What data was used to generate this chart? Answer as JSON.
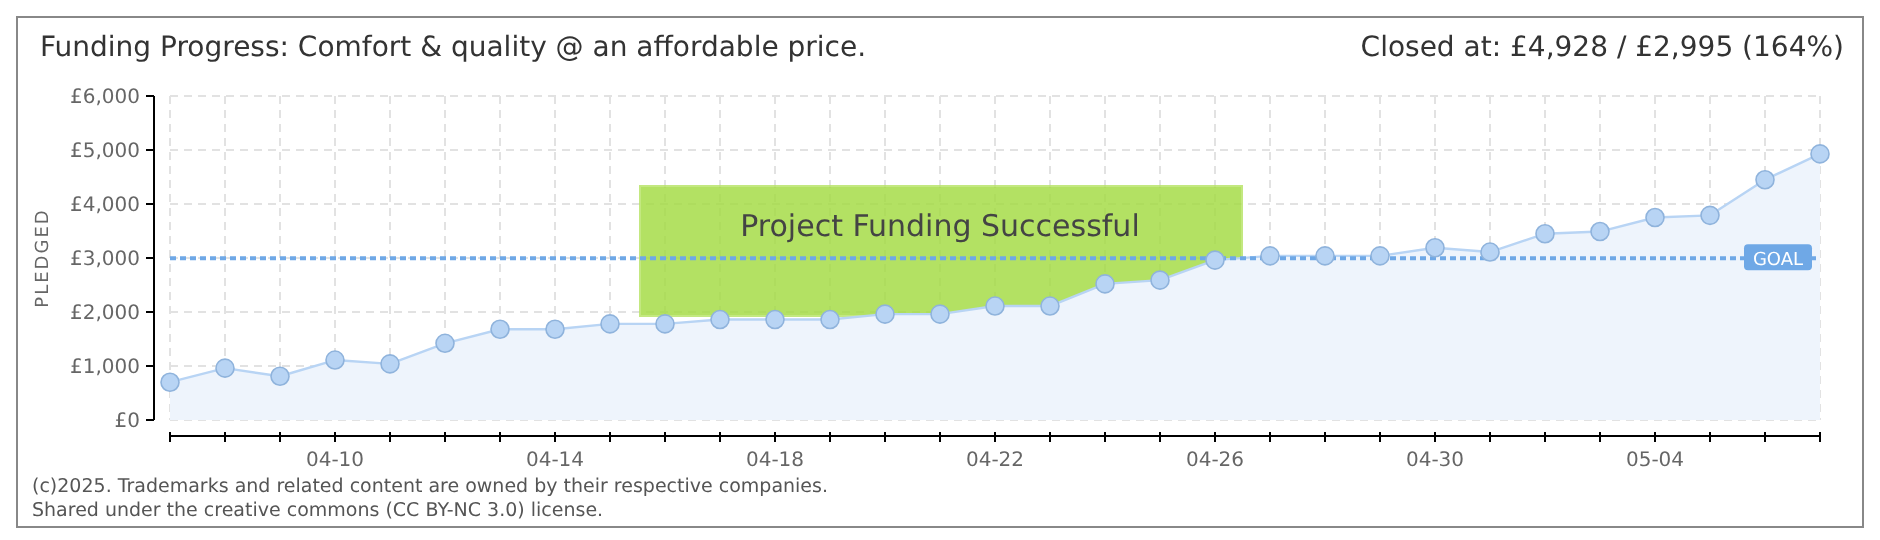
{
  "chart_data": {
    "type": "area",
    "title": "Funding Progress: Comfort & quality @ an affordable price.",
    "ylabel": "PLEDGED",
    "annotations": [
      "Closed at:  £4,928 / £2,995 (164%)",
      "Project Funding Successful",
      "(c)2025. Trademarks and related content are owned by their respective companies.",
      "Shared under the creative commons (CC BY-NC 3.0) license."
    ],
    "x": [
      "--04-07",
      "--04-08",
      "--04-09",
      "--04-10",
      "--04-11",
      "--04-12",
      "--04-13",
      "--04-14",
      "--04-15",
      "--04-16",
      "--04-17",
      "--04-18",
      "--04-19",
      "--04-20",
      "--04-21",
      "--04-22",
      "--04-23",
      "--04-24",
      "--04-25",
      "--04-26",
      "--04-27",
      "--04-28",
      "--04-29",
      "--04-30",
      "--05-01",
      "--05-02",
      "--05-03",
      "--05-04",
      "--05-05",
      "--05-06",
      "--05-07"
    ],
    "values": [
      700,
      960,
      810,
      1110,
      1040,
      1420,
      1680,
      1680,
      1780,
      1780,
      1860,
      1860,
      1860,
      1960,
      1960,
      2110,
      2110,
      2520,
      2590,
      2960,
      3040,
      3040,
      3040,
      3190,
      3110,
      3450,
      3490,
      3750,
      3790,
      4450,
      4928
    ],
    "color": "#b8d4f4",
    "marker": "circle",
    "grid": true,
    "xlim": [
      "--04-07",
      "--05-07"
    ],
    "xticks": [
      {
        "value": "--04-07",
        "label": null
      },
      {
        "value": "--04-08",
        "label": null
      },
      {
        "value": "--04-09",
        "label": null
      },
      {
        "value": "--04-10",
        "label": "04-10"
      },
      {
        "value": "--04-11",
        "label": null
      },
      {
        "value": "--04-12",
        "label": null
      },
      {
        "value": "--04-13",
        "label": null
      },
      {
        "value": "--04-14",
        "label": "04-14"
      },
      {
        "value": "--04-15",
        "label": null
      },
      {
        "value": "--04-16",
        "label": null
      },
      {
        "value": "--04-17",
        "label": null
      },
      {
        "value": "--04-18",
        "label": "04-18"
      },
      {
        "value": "--04-19",
        "label": null
      },
      {
        "value": "--04-20",
        "label": null
      },
      {
        "value": "--04-21",
        "label": null
      },
      {
        "value": "--04-22",
        "label": "04-22"
      },
      {
        "value": "--04-23",
        "label": null
      },
      {
        "value": "--04-24",
        "label": null
      },
      {
        "value": "--04-25",
        "label": null
      },
      {
        "value": "--04-26",
        "label": "04-26"
      },
      {
        "value": "--04-27",
        "label": null
      },
      {
        "value": "--04-28",
        "label": null
      },
      {
        "value": "--04-29",
        "label": null
      },
      {
        "value": "--04-30",
        "label": "04-30"
      },
      {
        "value": "--05-01",
        "label": null
      },
      {
        "value": "--05-02",
        "label": null
      },
      {
        "value": "--05-03",
        "label": null
      },
      {
        "value": "--05-04",
        "label": "05-04"
      },
      {
        "value": "--05-05",
        "label": null
      },
      {
        "value": "--05-06",
        "label": null
      },
      {
        "value": "--05-07",
        "label": null
      }
    ],
    "ylim": [
      0,
      6000
    ],
    "yticks": [
      {
        "value": 0,
        "label": "£0"
      },
      {
        "value": 1000,
        "label": "£1,000"
      },
      {
        "value": 2000,
        "label": "£2,000"
      },
      {
        "value": 3000,
        "label": "£3,000"
      },
      {
        "value": 4000,
        "label": "£4,000"
      },
      {
        "value": 5000,
        "label": "£5,000"
      },
      {
        "value": 6000,
        "label": "£6,000"
      }
    ],
    "ref_lines": [
      {
        "axis": "y",
        "value": 2995,
        "label": "GOAL",
        "color": "#6fa8e6",
        "line_style": "dotted"
      }
    ]
  }
}
